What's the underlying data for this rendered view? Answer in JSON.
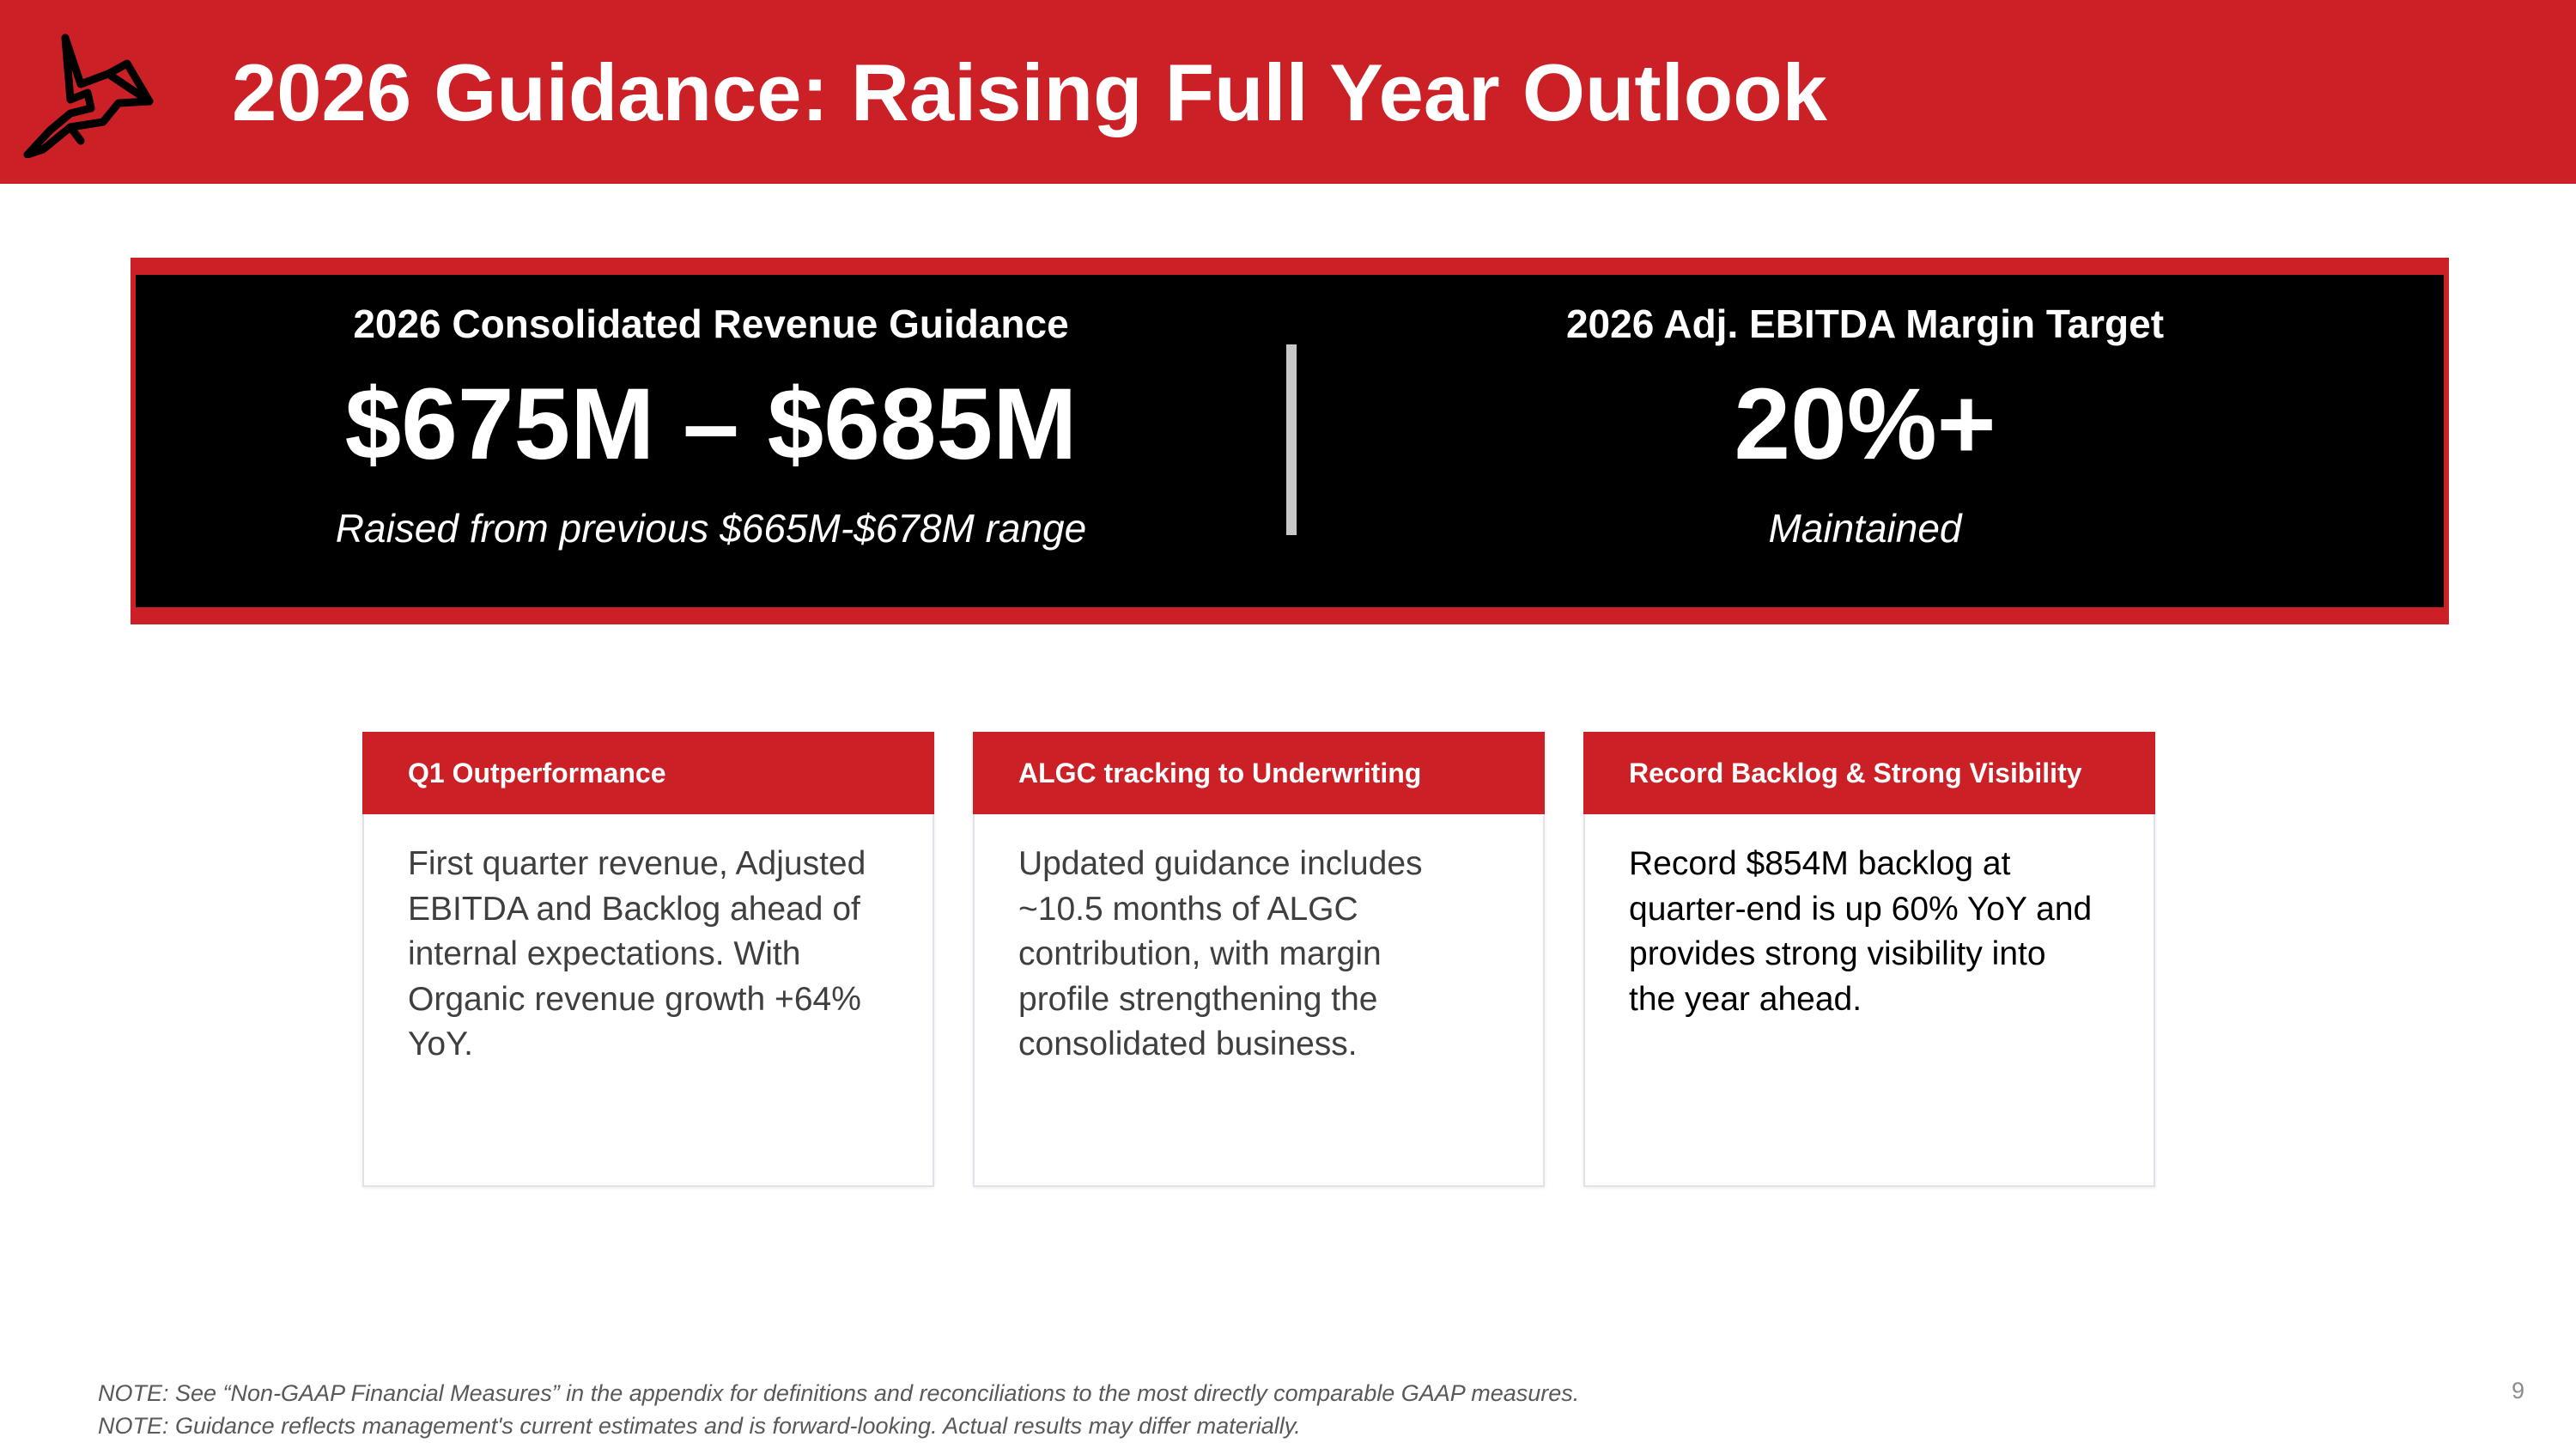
{
  "header": {
    "title": "2026 Guidance: Raising Full Year Outlook",
    "logo_icon": "cardinal-bird-logo-icon"
  },
  "guidance": {
    "revenue": {
      "label": "2026 Consolidated Revenue Guidance",
      "value": "$675M – $685M",
      "note": "Raised from previous $665M-$678M range"
    },
    "ebitda": {
      "label": "2026 Adj. EBITDA Margin Target",
      "value": "20%+",
      "note": "Maintained"
    }
  },
  "cards": [
    {
      "title": "Q1 Outperformance",
      "lines": [
        "First quarter revenue, Adjusted",
        "EBITDA and Backlog ahead of",
        "internal expectations. With",
        "Organic revenue growth +64%",
        "YoY."
      ]
    },
    {
      "title": "ALGC tracking to Underwriting",
      "lines": [
        "Updated guidance includes",
        "~10.5 months of ALGC",
        "contribution, with margin",
        "profile strengthening the",
        "consolidated business."
      ]
    },
    {
      "title": "Record Backlog & Strong Visibility",
      "lines": [
        "Record $854M backlog at",
        "quarter-end is up 60% YoY and",
        "provides strong visibility into",
        "the year ahead."
      ]
    }
  ],
  "footnotes": [
    "NOTE: See “Non-GAAP Financial Measures” in the appendix for definitions and reconciliations to the most directly comparable GAAP measures.",
    "NOTE: Guidance reflects management's current estimates and is forward-looking. Actual results may differ materially."
  ],
  "page_number": "9",
  "colors": {
    "brand_red": "#cc2027",
    "panel_black": "#000000",
    "divider_gray": "#c8c8c8",
    "text_gray": "#3f3f3f"
  }
}
